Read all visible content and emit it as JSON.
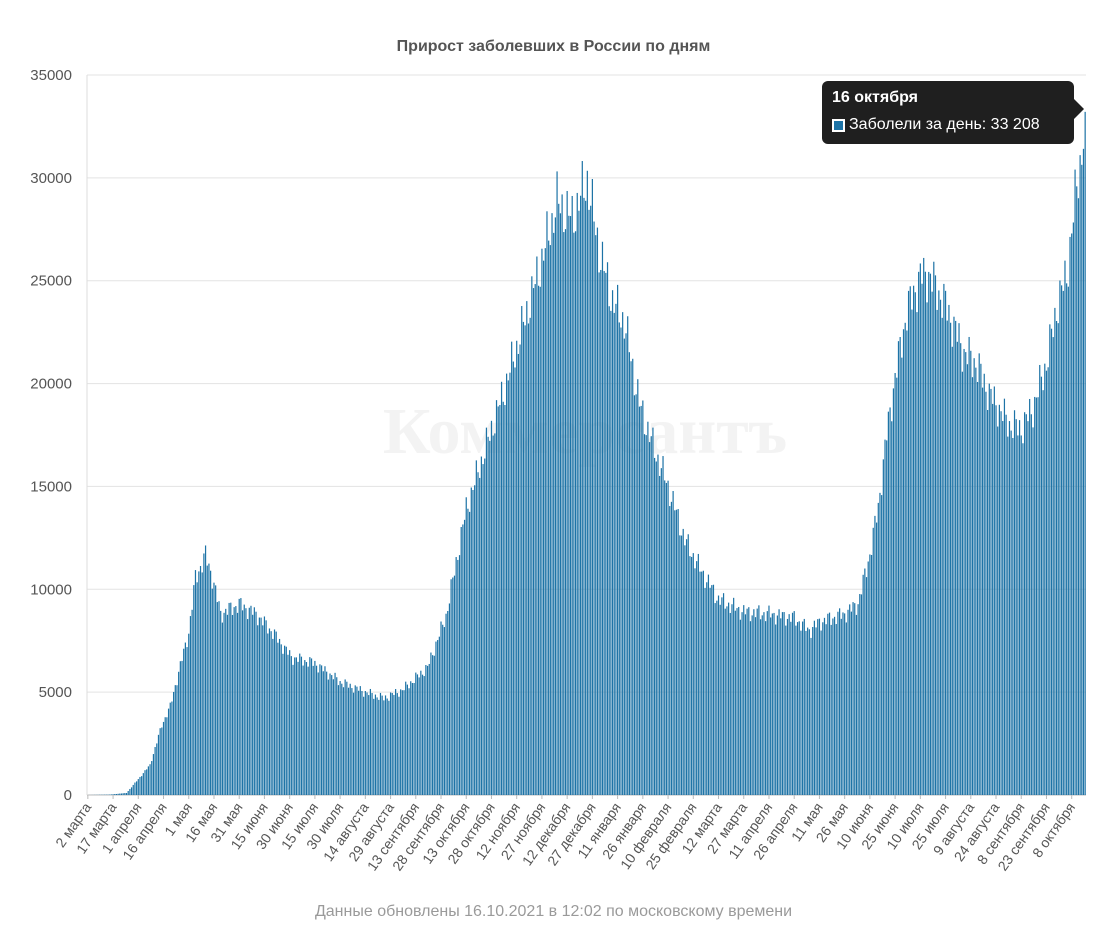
{
  "chart_data": {
    "type": "bar",
    "title": "Прирост заболевших в России по дням",
    "watermark": "Коммерсантъ",
    "series": [
      {
        "name": "Заболели за день",
        "color": "#1d73a6"
      }
    ],
    "x_start": "2020-03-02",
    "x_end": "2021-10-16",
    "ylim": [
      0,
      35000
    ],
    "yticks": [
      0,
      5000,
      10000,
      15000,
      20000,
      25000,
      30000,
      35000
    ],
    "ytick_labels": [
      "0",
      "5000",
      "10000",
      "15000",
      "20000",
      "25000",
      "30000",
      "35000"
    ],
    "xtick_labels": [
      "2 марта",
      "17 марта",
      "1 апреля",
      "16 апреля",
      "1 мая",
      "16 мая",
      "31 мая",
      "15 июня",
      "30 июня",
      "15 июля",
      "30 июля",
      "14 августа",
      "29 августа",
      "13 сентября",
      "28 сентября",
      "13 октября",
      "28 октября",
      "12 ноября",
      "27 ноября",
      "12 декабря",
      "27 декабря",
      "11 января",
      "26 января",
      "10 февраля",
      "25 февраля",
      "12 марта",
      "27 марта",
      "11 апреля",
      "26 апреля",
      "11 мая",
      "26 мая",
      "10 июня",
      "25 июня",
      "10 июля",
      "25 июля",
      "9 августа",
      "24 августа",
      "8 сентября",
      "23 сентября",
      "8 октября"
    ],
    "grid": true,
    "daily_values_keypoints": [
      [
        "2020-03-02",
        0
      ],
      [
        "2020-03-15",
        20
      ],
      [
        "2020-03-25",
        100
      ],
      [
        "2020-04-01",
        770
      ],
      [
        "2020-04-08",
        1460
      ],
      [
        "2020-04-15",
        3400
      ],
      [
        "2020-04-20",
        4300
      ],
      [
        "2020-04-25",
        5970
      ],
      [
        "2020-05-01",
        7900
      ],
      [
        "2020-05-05",
        10550
      ],
      [
        "2020-05-11",
        11650
      ],
      [
        "2020-05-15",
        10600
      ],
      [
        "2020-05-20",
        8800
      ],
      [
        "2020-05-31",
        9270
      ],
      [
        "2020-06-10",
        8800
      ],
      [
        "2020-06-20",
        7900
      ],
      [
        "2020-07-01",
        6700
      ],
      [
        "2020-07-15",
        6400
      ],
      [
        "2020-07-30",
        5500
      ],
      [
        "2020-08-14",
        5000
      ],
      [
        "2020-08-25",
        4700
      ],
      [
        "2020-09-05",
        5100
      ],
      [
        "2020-09-20",
        6200
      ],
      [
        "2020-10-01",
        8700
      ],
      [
        "2020-10-13",
        13900
      ],
      [
        "2020-10-25",
        17000
      ],
      [
        "2020-11-05",
        19800
      ],
      [
        "2020-11-15",
        22600
      ],
      [
        "2020-11-27",
        26000
      ],
      [
        "2020-12-06",
        28800
      ],
      [
        "2020-12-15",
        28000
      ],
      [
        "2020-12-24",
        29900
      ],
      [
        "2020-12-31",
        26500
      ],
      [
        "2021-01-08",
        24000
      ],
      [
        "2021-01-15",
        23000
      ],
      [
        "2021-01-24",
        19000
      ],
      [
        "2021-02-01",
        17000
      ],
      [
        "2021-02-10",
        15000
      ],
      [
        "2021-02-20",
        12400
      ],
      [
        "2021-03-01",
        11000
      ],
      [
        "2021-03-12",
        9500
      ],
      [
        "2021-03-27",
        8900
      ],
      [
        "2021-04-11",
        8800
      ],
      [
        "2021-04-26",
        8600
      ],
      [
        "2021-05-05",
        8000
      ],
      [
        "2021-05-11",
        8400
      ],
      [
        "2021-05-26",
        8800
      ],
      [
        "2021-06-03",
        9300
      ],
      [
        "2021-06-10",
        11700
      ],
      [
        "2021-06-15",
        14000
      ],
      [
        "2021-06-20",
        17500
      ],
      [
        "2021-06-25",
        20300
      ],
      [
        "2021-07-02",
        23500
      ],
      [
        "2021-07-10",
        25200
      ],
      [
        "2021-07-15",
        25300
      ],
      [
        "2021-07-25",
        23800
      ],
      [
        "2021-08-05",
        21500
      ],
      [
        "2021-08-12",
        21000
      ],
      [
        "2021-08-20",
        19500
      ],
      [
        "2021-09-01",
        18000
      ],
      [
        "2021-09-08",
        17800
      ],
      [
        "2021-09-15",
        18800
      ],
      [
        "2021-09-23",
        21000
      ],
      [
        "2021-09-30",
        24000
      ],
      [
        "2021-10-05",
        25200
      ],
      [
        "2021-10-10",
        28900
      ],
      [
        "2021-10-14",
        31300
      ],
      [
        "2021-10-16",
        33208
      ]
    ]
  },
  "tooltip": {
    "date": "16 октября",
    "series_label": "Заболели за день: 33 208"
  },
  "footer": {
    "note": "Данные обновлены 16.10.2021 в 12:02 по московскому времени"
  }
}
